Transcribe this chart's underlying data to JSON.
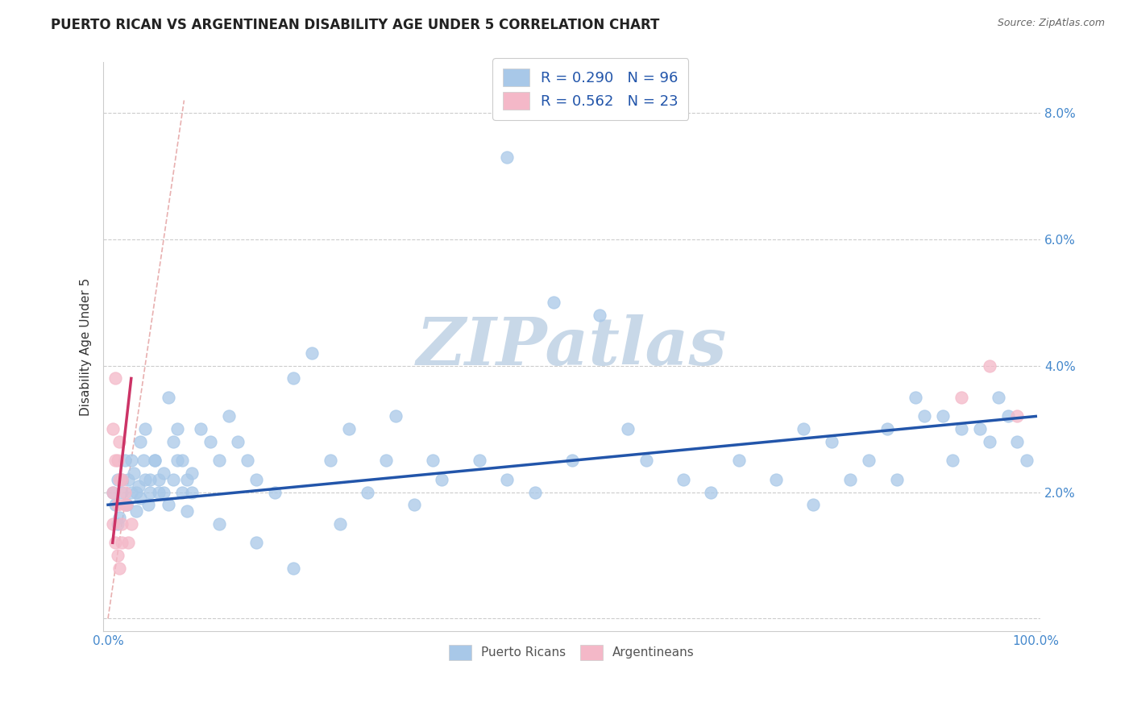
{
  "title": "PUERTO RICAN VS ARGENTINEAN DISABILITY AGE UNDER 5 CORRELATION CHART",
  "source": "Source: ZipAtlas.com",
  "ylabel": "Disability Age Under 5",
  "xlim": [
    -0.005,
    1.005
  ],
  "ylim": [
    -0.002,
    0.088
  ],
  "yticks": [
    0.0,
    0.02,
    0.04,
    0.06,
    0.08
  ],
  "ytick_labels": [
    "",
    "2.0%",
    "4.0%",
    "6.0%",
    "8.0%"
  ],
  "xticks": [
    0.0,
    1.0
  ],
  "xtick_labels": [
    "0.0%",
    "100.0%"
  ],
  "legend_r1": "R = 0.290",
  "legend_n1": "N = 96",
  "legend_r2": "R = 0.562",
  "legend_n2": "N = 23",
  "blue_color": "#a8c8e8",
  "pink_color": "#f4b8c8",
  "blue_line_color": "#2255aa",
  "pink_line_color": "#cc3366",
  "ref_line_color": "#e8b0b0",
  "watermark": "ZIPatlas",
  "watermark_color": "#c8d8e8",
  "tick_label_color": "#4488cc",
  "blue_points_x": [
    0.005,
    0.008,
    0.01,
    0.012,
    0.015,
    0.018,
    0.02,
    0.022,
    0.025,
    0.028,
    0.03,
    0.033,
    0.035,
    0.038,
    0.04,
    0.043,
    0.045,
    0.05,
    0.055,
    0.06,
    0.065,
    0.07,
    0.075,
    0.08,
    0.085,
    0.09,
    0.01,
    0.015,
    0.02,
    0.025,
    0.03,
    0.035,
    0.04,
    0.045,
    0.05,
    0.055,
    0.06,
    0.065,
    0.07,
    0.075,
    0.08,
    0.085,
    0.09,
    0.1,
    0.11,
    0.12,
    0.13,
    0.14,
    0.15,
    0.16,
    0.18,
    0.2,
    0.22,
    0.24,
    0.26,
    0.28,
    0.3,
    0.33,
    0.36,
    0.4,
    0.43,
    0.46,
    0.5,
    0.53,
    0.56,
    0.58,
    0.62,
    0.65,
    0.68,
    0.72,
    0.75,
    0.78,
    0.82,
    0.85,
    0.87,
    0.9,
    0.92,
    0.95,
    0.97,
    0.99,
    0.76,
    0.8,
    0.84,
    0.88,
    0.91,
    0.94,
    0.96,
    0.98,
    0.43,
    0.48,
    0.31,
    0.35,
    0.12,
    0.16,
    0.2,
    0.25
  ],
  "blue_points_y": [
    0.02,
    0.018,
    0.022,
    0.016,
    0.02,
    0.025,
    0.018,
    0.022,
    0.02,
    0.023,
    0.017,
    0.021,
    0.019,
    0.025,
    0.022,
    0.018,
    0.02,
    0.025,
    0.022,
    0.02,
    0.018,
    0.022,
    0.025,
    0.02,
    0.017,
    0.023,
    0.015,
    0.022,
    0.018,
    0.025,
    0.02,
    0.028,
    0.03,
    0.022,
    0.025,
    0.02,
    0.023,
    0.035,
    0.028,
    0.03,
    0.025,
    0.022,
    0.02,
    0.03,
    0.028,
    0.025,
    0.032,
    0.028,
    0.025,
    0.022,
    0.02,
    0.038,
    0.042,
    0.025,
    0.03,
    0.02,
    0.025,
    0.018,
    0.022,
    0.025,
    0.022,
    0.02,
    0.025,
    0.048,
    0.03,
    0.025,
    0.022,
    0.02,
    0.025,
    0.022,
    0.03,
    0.028,
    0.025,
    0.022,
    0.035,
    0.032,
    0.03,
    0.028,
    0.032,
    0.025,
    0.018,
    0.022,
    0.03,
    0.032,
    0.025,
    0.03,
    0.035,
    0.028,
    0.073,
    0.05,
    0.032,
    0.025,
    0.015,
    0.012,
    0.008,
    0.015
  ],
  "pink_points_x": [
    0.005,
    0.008,
    0.01,
    0.012,
    0.015,
    0.018,
    0.02,
    0.022,
    0.025,
    0.005,
    0.008,
    0.01,
    0.012,
    0.015,
    0.018,
    0.005,
    0.008,
    0.01,
    0.012,
    0.015,
    0.92,
    0.95,
    0.98
  ],
  "pink_points_y": [
    0.02,
    0.025,
    0.018,
    0.022,
    0.015,
    0.02,
    0.018,
    0.012,
    0.015,
    0.03,
    0.038,
    0.025,
    0.028,
    0.022,
    0.018,
    0.015,
    0.012,
    0.01,
    0.008,
    0.012,
    0.035,
    0.04,
    0.032
  ],
  "blue_trend_x": [
    0.0,
    1.0
  ],
  "blue_trend_y": [
    0.018,
    0.032
  ],
  "pink_trend_x": [
    0.005,
    0.025
  ],
  "pink_trend_y": [
    0.012,
    0.038
  ],
  "ref_line_x": [
    0.0,
    0.082
  ],
  "ref_line_y": [
    0.0,
    0.082
  ]
}
